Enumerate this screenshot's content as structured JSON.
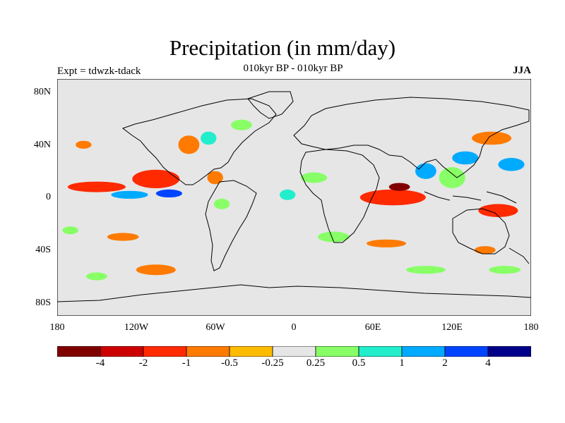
{
  "title": "Precipitation (in mm/day)",
  "subtitle": "010kyr BP - 010kyr BP",
  "expt_label": "Expt = tdwzk-tdack",
  "season": "JJA",
  "axes": {
    "lat_ticks": [
      "80N",
      "40N",
      "0",
      "40S",
      "80S"
    ],
    "lat_values": [
      80,
      40,
      0,
      -40,
      -80
    ],
    "lon_ticks": [
      "180",
      "120W",
      "60W",
      "0",
      "60E",
      "120E",
      "180"
    ],
    "lon_values": [
      -180,
      -120,
      -60,
      0,
      60,
      120,
      180
    ],
    "lon_range": [
      -180,
      180
    ],
    "lat_range": [
      -90,
      90
    ]
  },
  "colorbar": {
    "colors": [
      "#800000",
      "#cc0000",
      "#ff2a00",
      "#ff7a00",
      "#ffbb00",
      "#e6e6e6",
      "#88ff66",
      "#22eecc",
      "#00aaff",
      "#0044ff",
      "#000088"
    ],
    "labels": [
      "-4",
      "-2",
      "-1",
      "-0.5",
      "-0.25",
      "0.25",
      "0.5",
      "1",
      "2",
      "4"
    ]
  },
  "background_color": "#e6e6e6",
  "anomaly_regions": [
    {
      "lon": -150,
      "lat": 8,
      "rx": 22,
      "ry": 4,
      "level": 2
    },
    {
      "lon": -105,
      "lat": 14,
      "rx": 18,
      "ry": 7,
      "level": 2
    },
    {
      "lon": -95,
      "lat": 3,
      "rx": 10,
      "ry": 3,
      "level": 9
    },
    {
      "lon": -125,
      "lat": 2,
      "rx": 14,
      "ry": 3,
      "level": 8
    },
    {
      "lon": -80,
      "lat": 40,
      "rx": 8,
      "ry": 7,
      "level": 3
    },
    {
      "lon": -65,
      "lat": 45,
      "rx": 6,
      "ry": 5,
      "level": 7
    },
    {
      "lon": -60,
      "lat": 15,
      "rx": 6,
      "ry": 5,
      "level": 3
    },
    {
      "lon": -55,
      "lat": -5,
      "rx": 6,
      "ry": 4,
      "level": 6
    },
    {
      "lon": -40,
      "lat": 55,
      "rx": 8,
      "ry": 4,
      "level": 6
    },
    {
      "lon": -5,
      "lat": 2,
      "rx": 6,
      "ry": 4,
      "level": 7
    },
    {
      "lon": 15,
      "lat": 15,
      "rx": 10,
      "ry": 4,
      "level": 6
    },
    {
      "lon": 75,
      "lat": 0,
      "rx": 25,
      "ry": 6,
      "level": 2
    },
    {
      "lon": 80,
      "lat": 8,
      "rx": 8,
      "ry": 3,
      "level": 0
    },
    {
      "lon": 100,
      "lat": 20,
      "rx": 8,
      "ry": 6,
      "level": 8
    },
    {
      "lon": 120,
      "lat": 15,
      "rx": 10,
      "ry": 8,
      "level": 6
    },
    {
      "lon": 130,
      "lat": 30,
      "rx": 10,
      "ry": 5,
      "level": 8
    },
    {
      "lon": 150,
      "lat": 45,
      "rx": 15,
      "ry": 5,
      "level": 3
    },
    {
      "lon": 155,
      "lat": -10,
      "rx": 15,
      "ry": 5,
      "level": 2
    },
    {
      "lon": 165,
      "lat": 25,
      "rx": 10,
      "ry": 5,
      "level": 8
    },
    {
      "lon": 145,
      "lat": -40,
      "rx": 8,
      "ry": 3,
      "level": 3
    },
    {
      "lon": 30,
      "lat": -30,
      "rx": 12,
      "ry": 4,
      "level": 6
    },
    {
      "lon": 70,
      "lat": -35,
      "rx": 15,
      "ry": 3,
      "level": 3
    },
    {
      "lon": -105,
      "lat": -55,
      "rx": 15,
      "ry": 4,
      "level": 3
    },
    {
      "lon": -130,
      "lat": -30,
      "rx": 12,
      "ry": 3,
      "level": 3
    },
    {
      "lon": -170,
      "lat": -25,
      "rx": 6,
      "ry": 3,
      "level": 6
    },
    {
      "lon": -160,
      "lat": 40,
      "rx": 6,
      "ry": 3,
      "level": 3
    },
    {
      "lon": -150,
      "lat": -60,
      "rx": 8,
      "ry": 3,
      "level": 6
    },
    {
      "lon": 100,
      "lat": -55,
      "rx": 15,
      "ry": 3,
      "level": 6
    },
    {
      "lon": 160,
      "lat": -55,
      "rx": 12,
      "ry": 3,
      "level": 6
    }
  ]
}
